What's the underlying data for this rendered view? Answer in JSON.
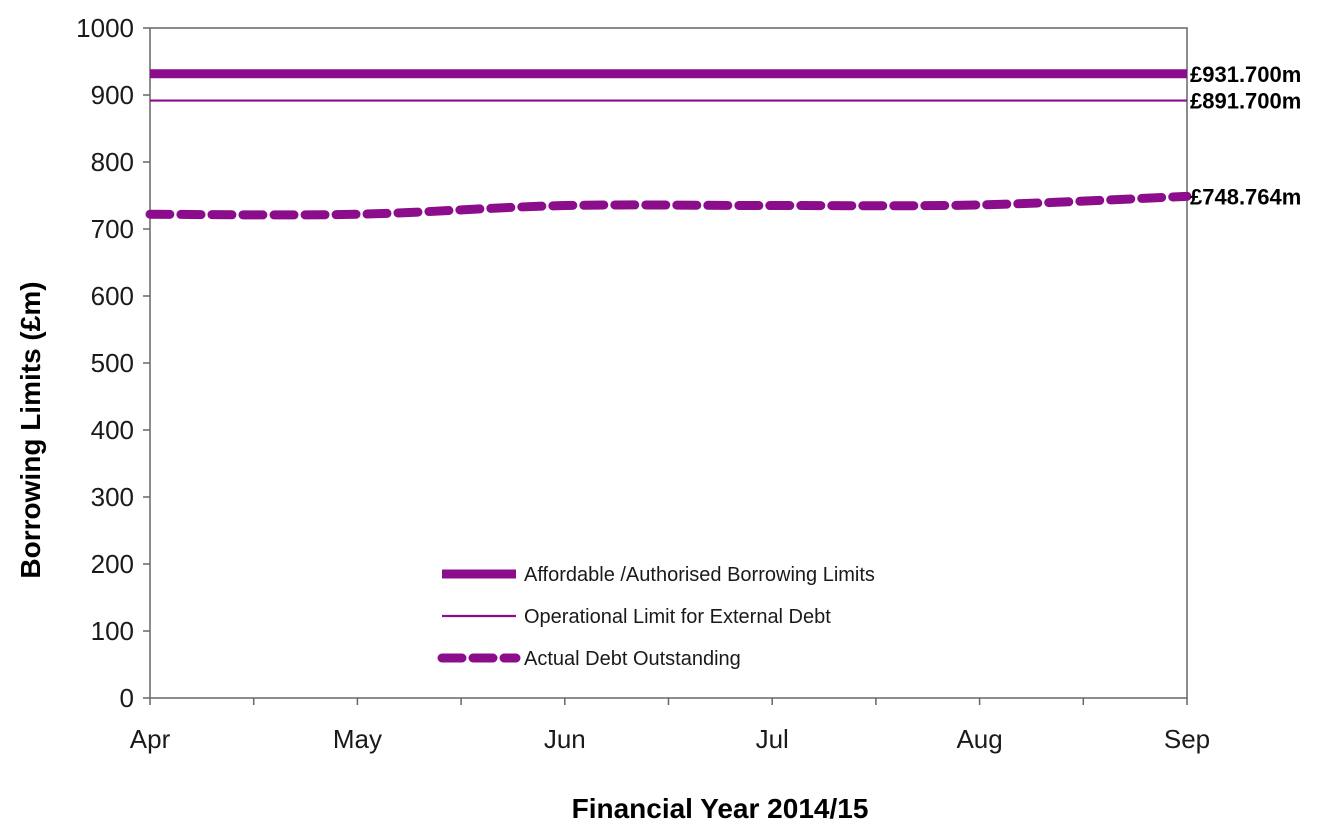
{
  "chart_data": {
    "type": "line",
    "xlabel": "Financial Year 2014/15",
    "ylabel": "Borrowing Limits (£m)",
    "x": [
      "Apr",
      "May",
      "Jun",
      "Jul",
      "Aug",
      "Sep"
    ],
    "x_minor_ticks": true,
    "ylim": [
      0,
      1000
    ],
    "yticks": [
      0,
      100,
      200,
      300,
      400,
      500,
      600,
      700,
      800,
      900,
      1000
    ],
    "grid": false,
    "legend_position": "bottom-center",
    "series": [
      {
        "name": "Affordable /Authorised Borrowing Limits",
        "values": [
          931.7,
          931.7,
          931.7,
          931.7,
          931.7,
          931.7
        ],
        "style": "thick-solid",
        "color": "#8b0d8b",
        "end_label": "£931.700m"
      },
      {
        "name": "Operational Limit for External Debt",
        "values": [
          891.7,
          891.7,
          891.7,
          891.7,
          891.7,
          891.7
        ],
        "style": "thin-solid",
        "color": "#8b0d8b",
        "end_label": "£891.700m"
      },
      {
        "name": "Actual Debt Outstanding",
        "values": [
          722,
          722,
          735,
          735,
          736,
          748.764
        ],
        "style": "thick-dashed",
        "color": "#8b0d8b",
        "end_label": "£748.764m"
      }
    ]
  }
}
